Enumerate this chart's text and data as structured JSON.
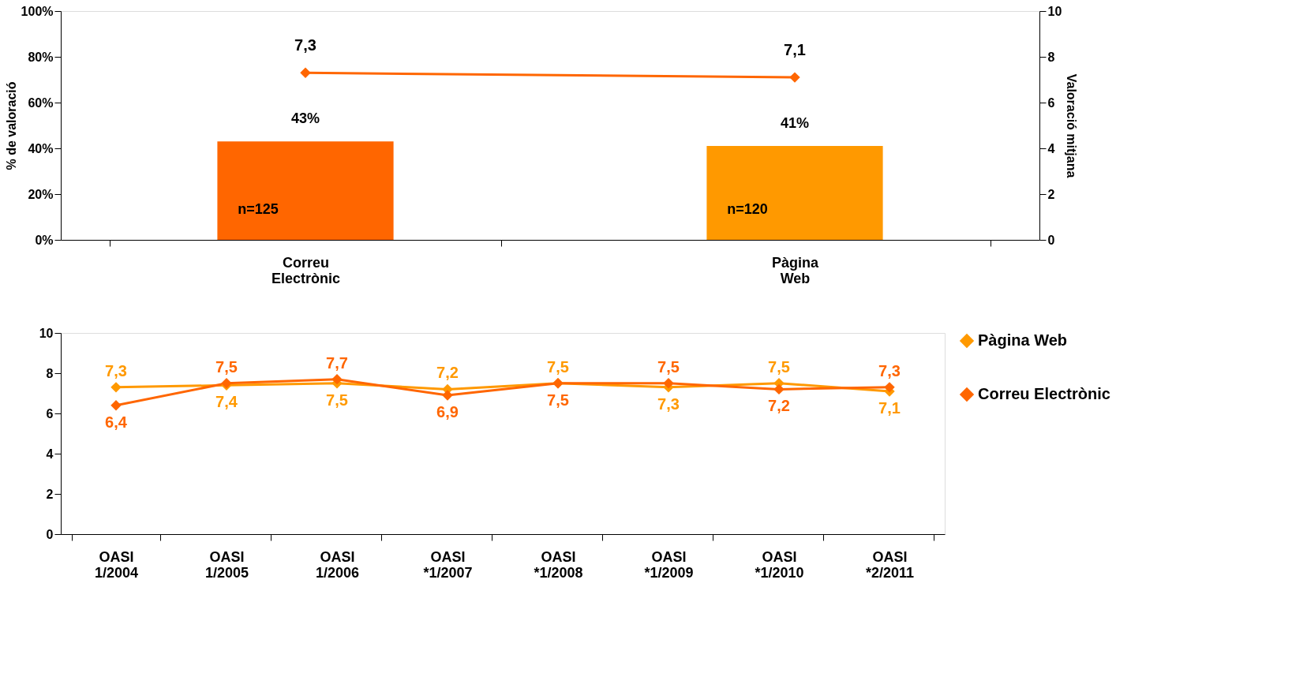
{
  "chart_data": [
    {
      "type": "bar",
      "categories": [
        "Correu Electrònic",
        "Pàgina Web"
      ],
      "ylabel": "% de valoració",
      "y2label": "Valoració mitjana",
      "ylim": [
        0,
        100
      ],
      "yticks": [
        {
          "value": 0,
          "label": "0%"
        },
        {
          "value": 20,
          "label": "20%"
        },
        {
          "value": 40,
          "label": "40%"
        },
        {
          "value": 60,
          "label": "60%"
        },
        {
          "value": 80,
          "label": "80%"
        },
        {
          "value": 100,
          "label": "100%"
        }
      ],
      "y2lim": [
        0,
        10
      ],
      "y2ticks": [
        0,
        2,
        4,
        6,
        8,
        10
      ],
      "grid": false,
      "series": [
        {
          "type": "bar",
          "colors": [
            "#ff6600",
            "#ff9900"
          ],
          "values": [
            43,
            41
          ],
          "value_labels": [
            "43%",
            "41%"
          ]
        },
        {
          "type": "line",
          "axis": "y2",
          "color": "#ff6600",
          "values": [
            7.3,
            7.1
          ],
          "value_labels": [
            "7,3",
            "7,1"
          ]
        }
      ],
      "marker": "diamond",
      "annotations": [
        "n=125",
        "n=120"
      ]
    },
    {
      "type": "line",
      "categories": [
        "OASI 1/2004",
        "OASI 1/2005",
        "OASI 1/2006",
        "OASI *1/2007",
        "OASI *1/2008",
        "OASI *1/2009",
        "OASI *1/2010",
        "OASI *2/2011"
      ],
      "ylim": [
        0,
        10
      ],
      "yticks": [
        0,
        2,
        4,
        6,
        8,
        10
      ],
      "grid": false,
      "legend": "right",
      "marker": "diamond",
      "series": [
        {
          "name": "Pàgina Web",
          "color": "#ff9900",
          "values": [
            7.3,
            7.4,
            7.5,
            7.2,
            7.5,
            7.3,
            7.5,
            7.1
          ],
          "value_labels": [
            "7,3",
            "7,4",
            "7,5",
            "7,2",
            "7,5",
            "7,3",
            "7,5",
            "7,1"
          ]
        },
        {
          "name": "Correu Electrònic",
          "color": "#ff6600",
          "values": [
            6.4,
            7.5,
            7.7,
            6.9,
            7.5,
            7.5,
            7.2,
            7.3
          ],
          "value_labels": [
            "6,4",
            "7,5",
            "7,7",
            "6,9",
            "7,5",
            "7,5",
            "7,2",
            "7,3"
          ]
        }
      ]
    }
  ]
}
